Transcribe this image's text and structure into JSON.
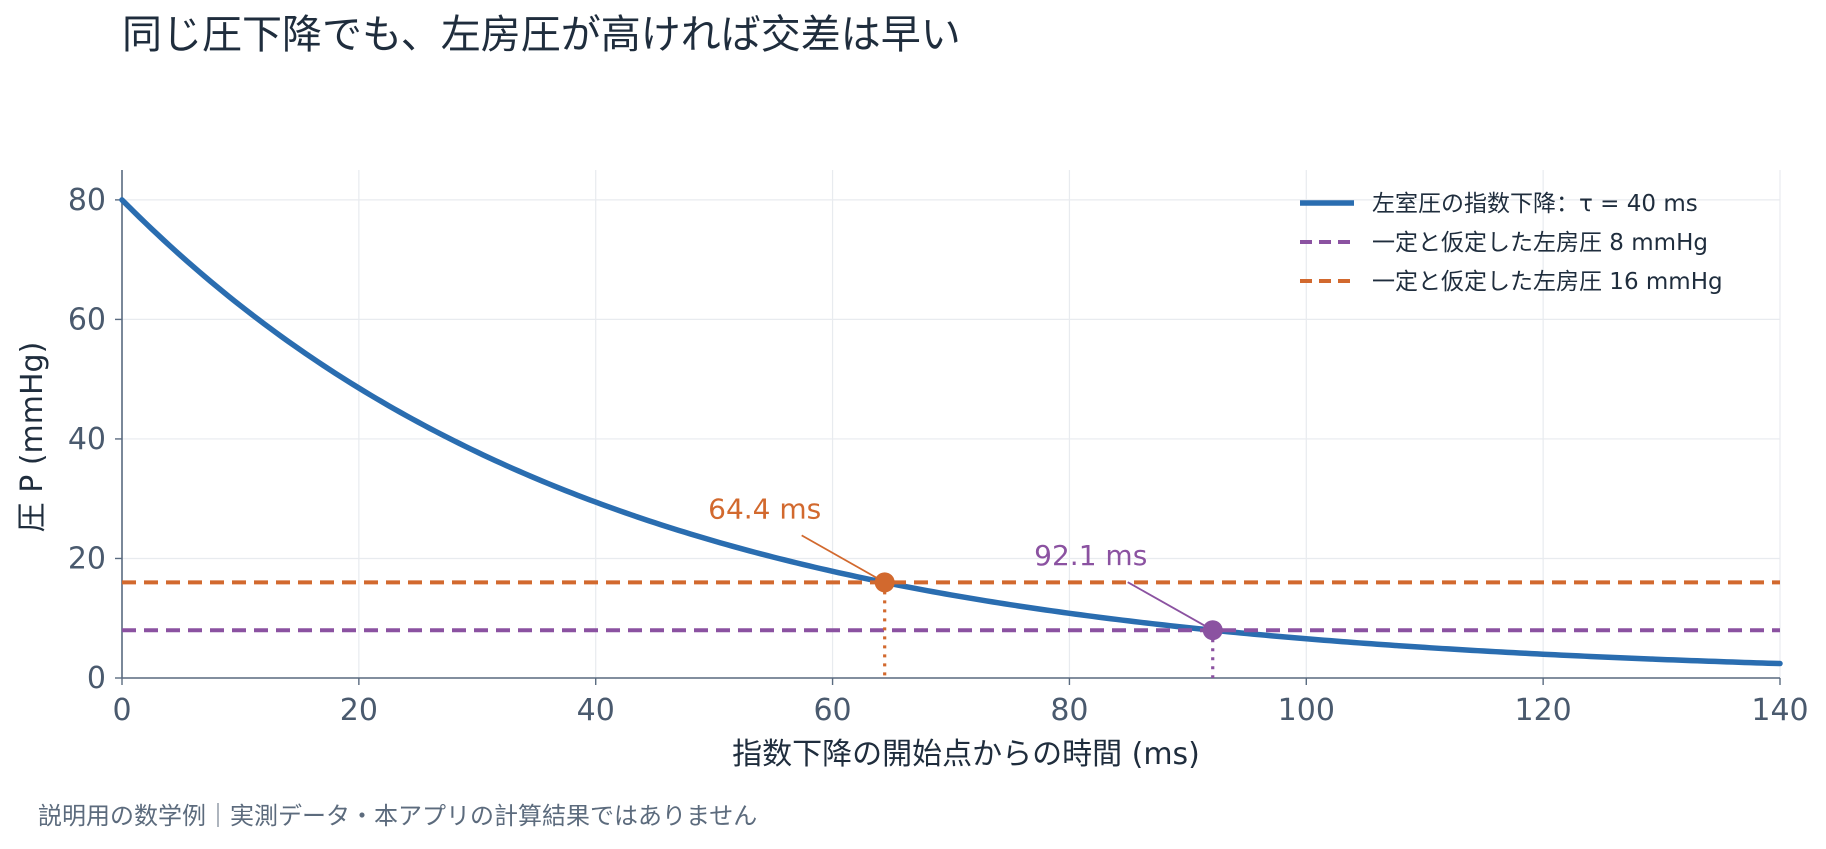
{
  "chart_data": {
    "type": "line",
    "title": "同じ圧下降でも、左房圧が高ければ交差は早い",
    "xlabel": "指数下降の開始点からの時間 (ms)",
    "ylabel": "圧 P (mmHg)",
    "xlim": [
      0,
      140
    ],
    "ylim": [
      0,
      85
    ],
    "xticks": [
      0,
      20,
      40,
      60,
      80,
      100,
      120,
      140
    ],
    "yticks": [
      0,
      20,
      40,
      60,
      80
    ],
    "grid": true,
    "legend_position": "top-right",
    "series": [
      {
        "name": "左室圧の指数下降：τ = 40 ms",
        "kind": "exponential-decay",
        "p0": 80,
        "tau": 40,
        "color": "#2a6db0",
        "style": "solid"
      },
      {
        "name": "一定と仮定した左房圧 8 mmHg",
        "kind": "constant",
        "y": 8,
        "color": "#8b52a1",
        "style": "dashed"
      },
      {
        "name": "一定と仮定した左房圧 16 mmHg",
        "kind": "constant",
        "y": 16,
        "color": "#d2692e",
        "style": "dashed"
      }
    ],
    "annotations": [
      {
        "label": "64.4 ms",
        "x": 64.4,
        "y": 16,
        "color": "#d2692e"
      },
      {
        "label": "92.1 ms",
        "x": 92.1,
        "y": 8,
        "color": "#8b52a1"
      }
    ]
  },
  "footnote": "説明用の数学例｜実測データ・本アプリの計算結果ではありません"
}
